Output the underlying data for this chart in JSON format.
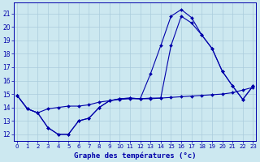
{
  "title": "Graphe des températures (°c)",
  "bg_color": "#cce8f0",
  "line_color": "#0000aa",
  "grid_color": "#aaccdd",
  "x_ticks": [
    0,
    1,
    2,
    3,
    4,
    5,
    6,
    7,
    8,
    9,
    10,
    11,
    12,
    13,
    14,
    15,
    16,
    17,
    18,
    19,
    20,
    21,
    22,
    23
  ],
  "y_ticks": [
    12,
    13,
    14,
    15,
    16,
    17,
    18,
    19,
    20,
    21
  ],
  "ylim": [
    11.5,
    21.8
  ],
  "xlim": [
    -0.3,
    23.3
  ],
  "line1_x": [
    0,
    1,
    2,
    3,
    4,
    5,
    6,
    7,
    8,
    9,
    10,
    11,
    12,
    13,
    14,
    15,
    16,
    17,
    18,
    19,
    20,
    21,
    22,
    23
  ],
  "line1_y": [
    14.9,
    13.9,
    13.6,
    13.9,
    14.0,
    14.1,
    14.1,
    14.2,
    14.4,
    14.5,
    14.6,
    14.65,
    14.65,
    14.7,
    14.7,
    14.75,
    14.8,
    14.85,
    14.9,
    14.95,
    15.0,
    15.1,
    15.3,
    15.5
  ],
  "line2_x": [
    0,
    1,
    2,
    3,
    4,
    5,
    6,
    7,
    8,
    9,
    10,
    11,
    12,
    13,
    14,
    15,
    16,
    17,
    18,
    19,
    20,
    21,
    22,
    23
  ],
  "line2_y": [
    14.9,
    13.9,
    13.6,
    12.5,
    12.0,
    12.0,
    13.0,
    13.2,
    14.0,
    14.5,
    14.65,
    14.7,
    14.65,
    14.65,
    14.7,
    18.6,
    20.8,
    20.3,
    19.4,
    18.4,
    16.7,
    15.6,
    14.6,
    15.6
  ],
  "line3_x": [
    0,
    1,
    2,
    3,
    4,
    5,
    6,
    7,
    8,
    9,
    10,
    11,
    12,
    13,
    14,
    15,
    16,
    17,
    18,
    19,
    20,
    21,
    22,
    23
  ],
  "line3_y": [
    14.9,
    13.9,
    13.6,
    12.5,
    12.0,
    12.0,
    13.0,
    13.2,
    14.0,
    14.5,
    14.65,
    14.7,
    14.65,
    16.5,
    18.6,
    20.8,
    21.3,
    20.7,
    19.4,
    18.4,
    16.7,
    15.6,
    14.6,
    15.6
  ]
}
